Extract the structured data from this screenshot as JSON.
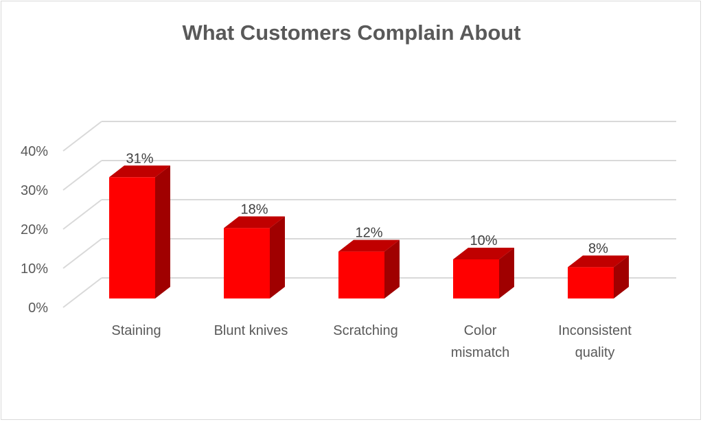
{
  "chart_data": {
    "type": "bar",
    "style": "3d-column",
    "title": "What Customers Complain About",
    "categories": [
      "Staining",
      "Blunt knives",
      "Scratching",
      "Color mismatch",
      "Inconsistent quality"
    ],
    "category_lines": [
      [
        "Staining"
      ],
      [
        "Blunt knives"
      ],
      [
        "Scratching"
      ],
      [
        "Color",
        "mismatch"
      ],
      [
        "Inconsistent",
        "quality"
      ]
    ],
    "values": [
      31,
      18,
      12,
      10,
      8
    ],
    "data_labels": [
      "31%",
      "18%",
      "12%",
      "10%",
      "8%"
    ],
    "ylim": [
      0,
      40
    ],
    "yticks": [
      0,
      10,
      20,
      30,
      40
    ],
    "ytick_labels": [
      "0%",
      "10%",
      "20%",
      "30%",
      "40%"
    ],
    "xlabel": "",
    "ylabel": "",
    "grid": true,
    "legend": "none",
    "colors": {
      "front": "#ff0000",
      "top": "#c00000",
      "side": "#a00000",
      "grid": "#d9d9d9",
      "text": "#595959"
    }
  }
}
